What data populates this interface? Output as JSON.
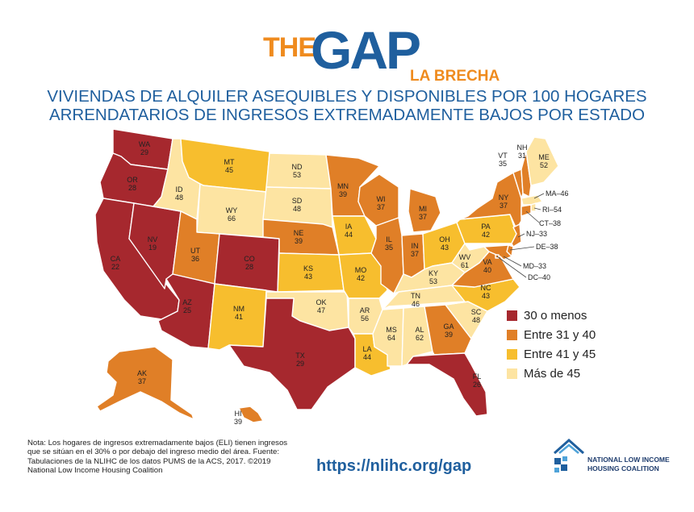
{
  "header": {
    "logo_the": "THE",
    "logo_gap": "GAP",
    "logo_brecha": "LA BRECHA",
    "title_line1": "VIVIENDAS DE ALQUILER ASEQUIBLES Y DISPONIBLES POR 100 HOGARES",
    "title_line2": "ARRENDATARIOS DE INGRESOS EXTREMADAMENTE BAJOS POR ESTADO"
  },
  "colors": {
    "lte30": "#a6282e",
    "r31_40": "#e07f27",
    "r41_45": "#f7be2e",
    "gt45": "#fde4a2",
    "stroke": "#ffffff",
    "text": "#222222",
    "brand_blue": "#1f5f9e",
    "brand_orange": "#ef8b1e"
  },
  "legend": [
    {
      "label": "30 o menos",
      "color": "#a6282e"
    },
    {
      "label": "Entre 31 y 40",
      "color": "#e07f27"
    },
    {
      "label": "Entre 41 y 45",
      "color": "#f7be2e"
    },
    {
      "label": "Más de 45",
      "color": "#fde4a2"
    }
  ],
  "states": [
    {
      "abbr": "WA",
      "value": "29"
    },
    {
      "abbr": "OR",
      "value": "28"
    },
    {
      "abbr": "CA",
      "value": "22"
    },
    {
      "abbr": "NV",
      "value": "19"
    },
    {
      "abbr": "ID",
      "value": "48"
    },
    {
      "abbr": "MT",
      "value": "45"
    },
    {
      "abbr": "WY",
      "value": "66"
    },
    {
      "abbr": "UT",
      "value": "36"
    },
    {
      "abbr": "AZ",
      "value": "25"
    },
    {
      "abbr": "CO",
      "value": "28"
    },
    {
      "abbr": "NM",
      "value": "41"
    },
    {
      "abbr": "ND",
      "value": "53"
    },
    {
      "abbr": "SD",
      "value": "48"
    },
    {
      "abbr": "NE",
      "value": "39"
    },
    {
      "abbr": "KS",
      "value": "43"
    },
    {
      "abbr": "OK",
      "value": "47"
    },
    {
      "abbr": "TX",
      "value": "29"
    },
    {
      "abbr": "MN",
      "value": "39"
    },
    {
      "abbr": "IA",
      "value": "44"
    },
    {
      "abbr": "MO",
      "value": "42"
    },
    {
      "abbr": "AR",
      "value": "56"
    },
    {
      "abbr": "LA",
      "value": "44"
    },
    {
      "abbr": "WI",
      "value": "37"
    },
    {
      "abbr": "IL",
      "value": "35"
    },
    {
      "abbr": "MI",
      "value": "37"
    },
    {
      "abbr": "IN",
      "value": "37"
    },
    {
      "abbr": "OH",
      "value": "43"
    },
    {
      "abbr": "KY",
      "value": "53"
    },
    {
      "abbr": "TN",
      "value": "46"
    },
    {
      "abbr": "MS",
      "value": "64"
    },
    {
      "abbr": "AL",
      "value": "62"
    },
    {
      "abbr": "GA",
      "value": "39"
    },
    {
      "abbr": "FL",
      "value": "26"
    },
    {
      "abbr": "SC",
      "value": "48"
    },
    {
      "abbr": "NC",
      "value": "43"
    },
    {
      "abbr": "VA",
      "value": "40"
    },
    {
      "abbr": "WV",
      "value": "61"
    },
    {
      "abbr": "PA",
      "value": "42"
    },
    {
      "abbr": "NY",
      "value": "37"
    },
    {
      "abbr": "VT",
      "value": "35"
    },
    {
      "abbr": "NH",
      "value": "31"
    },
    {
      "abbr": "ME",
      "value": "52"
    },
    {
      "abbr": "AK",
      "value": "37"
    },
    {
      "abbr": "HI",
      "value": "39"
    }
  ],
  "callouts": [
    {
      "abbr": "MA",
      "value": "46",
      "text": "MA–46"
    },
    {
      "abbr": "RI",
      "value": "54",
      "text": "RI–54"
    },
    {
      "abbr": "CT",
      "value": "38",
      "text": "CT–38"
    },
    {
      "abbr": "NJ",
      "value": "33",
      "text": "NJ–33"
    },
    {
      "abbr": "DE",
      "value": "38",
      "text": "DE–38"
    },
    {
      "abbr": "MD",
      "value": "33",
      "text": "MD–33"
    },
    {
      "abbr": "DC",
      "value": "40",
      "text": "DC–40"
    }
  ],
  "footer": {
    "note": "Nota: Los hogares de ingresos extremadamente bajos (ELI) tienen ingresos que se sitúan en el 30% o por debajo del ingreso medio del área. Fuente: Tabulaciones de la NLIHC de los datos PUMS de la ACS, 2017. ©2019 National Low Income Housing Coalition",
    "url": "https://nlihc.org/gap",
    "org_line1": "NATIONAL LOW INCOME",
    "org_line2": "HOUSING COALITION"
  }
}
